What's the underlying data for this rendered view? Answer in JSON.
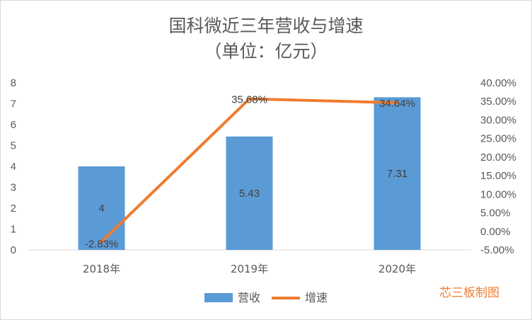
{
  "chart_data": {
    "type": "bar+line",
    "title": "国科微近三年营收与增速",
    "subtitle": "（单位：亿元）",
    "categories": [
      "2018年",
      "2019年",
      "2020年"
    ],
    "series": [
      {
        "name": "营收",
        "type": "bar",
        "axis": "left",
        "color": "#5B9BD5",
        "values": [
          4,
          5.43,
          7.31
        ],
        "labels": [
          "4",
          "5.43",
          "7.31"
        ]
      },
      {
        "name": "增速",
        "type": "line",
        "axis": "right",
        "color": "#ED7D31",
        "values": [
          -2.83,
          35.68,
          34.64
        ],
        "labels": [
          "-2.83%",
          "35.68%",
          "34.64%"
        ]
      }
    ],
    "y_left": {
      "min": 0,
      "max": 8,
      "step": 1,
      "ticks": [
        "0",
        "1",
        "2",
        "3",
        "4",
        "5",
        "6",
        "7",
        "8"
      ]
    },
    "y_right": {
      "min": -5,
      "max": 40,
      "step": 5,
      "ticks": [
        "-5.00%",
        "0.00%",
        "5.00%",
        "10.00%",
        "15.00%",
        "20.00%",
        "25.00%",
        "30.00%",
        "35.00%",
        "40.00%"
      ]
    },
    "legend": {
      "position": "bottom",
      "items": [
        "营收",
        "增速"
      ]
    },
    "watermark": "芯三板制图"
  }
}
